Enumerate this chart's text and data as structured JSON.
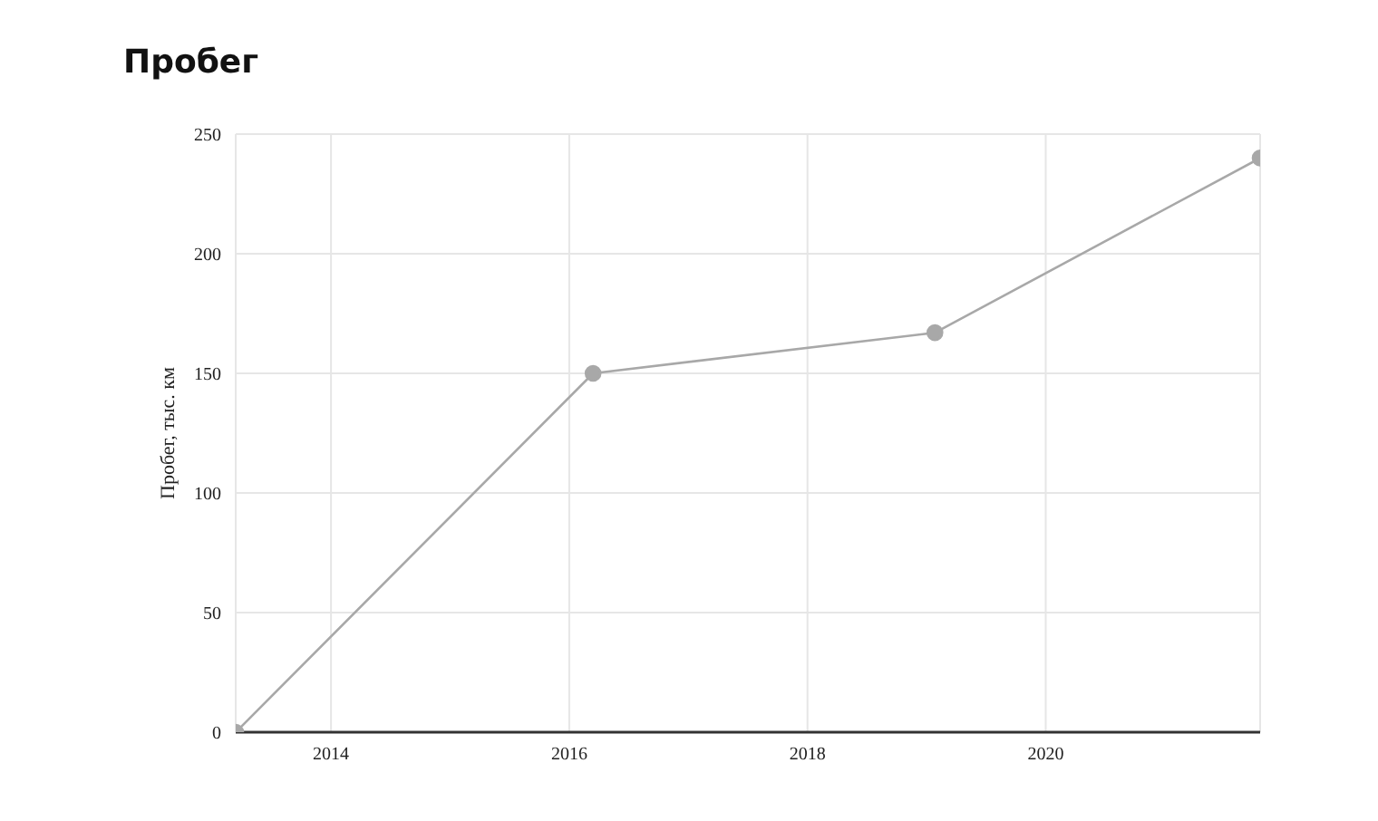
{
  "chart_data": {
    "type": "line",
    "title": "Пробег",
    "ylabel": "Пробег, тыс. км",
    "x": [
      2013.2,
      2016.2,
      2019.07,
      2021.8
    ],
    "series": [
      {
        "color": "#a8a8a8",
        "values": [
          0,
          150,
          167,
          240
        ]
      }
    ],
    "xlim": [
      2013.2,
      2021.8
    ],
    "xticks": [
      2014,
      2016,
      2018,
      2020
    ],
    "ylim": [
      0,
      250
    ],
    "yticks": [
      0,
      50,
      100,
      150,
      200,
      250
    ],
    "grid": true,
    "marker": "circle",
    "line_style": "solid",
    "legend": false
  }
}
